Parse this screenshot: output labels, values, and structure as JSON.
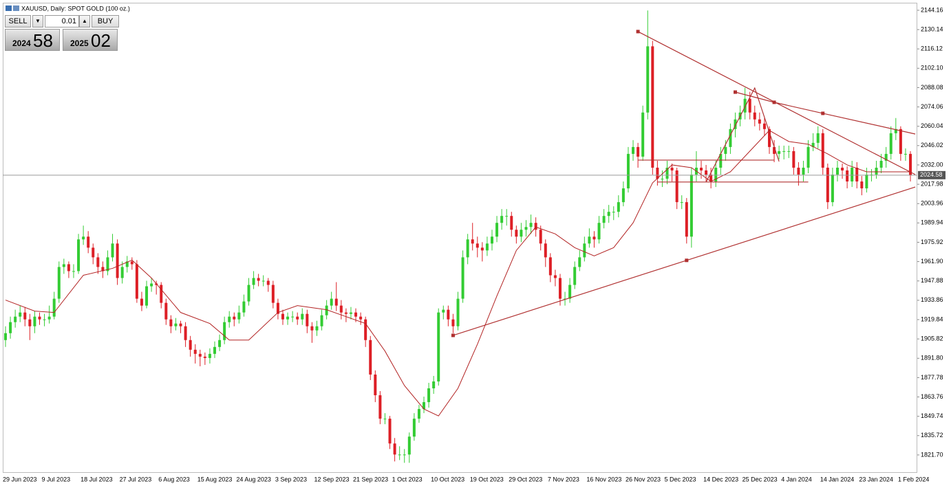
{
  "header": {
    "title": "XAUUSD, Daily:  SPOT GOLD (100 oz.)"
  },
  "trade_panel": {
    "sell": "SELL",
    "lots": "0.01",
    "buy": "BUY",
    "bid_big": "2024",
    "bid_small": "58",
    "ask_big": "2025",
    "ask_small": "02"
  },
  "chart_data": {
    "type": "candlestick",
    "categories": [
      "29 Jun 2023",
      null,
      null,
      null,
      null,
      null,
      null,
      null,
      "9 Jul 2023",
      null,
      null,
      null,
      null,
      null,
      null,
      null,
      "18 Jul 2023",
      null,
      null,
      null,
      null,
      null,
      null,
      null,
      "27 Jul 2023",
      null,
      null,
      null,
      null,
      null,
      null,
      null,
      "6 Aug 2023",
      null,
      null,
      null,
      null,
      null,
      null,
      null,
      "15 Aug 2023",
      null,
      null,
      null,
      null,
      null,
      null,
      null,
      "24 Aug 2023",
      null,
      null,
      null,
      null,
      null,
      null,
      null,
      "3 Sep 2023",
      null,
      null,
      null,
      null,
      null,
      null,
      null,
      "12 Sep 2023",
      null,
      null,
      null,
      null,
      null,
      null,
      null,
      "21 Sep 2023",
      null,
      null,
      null,
      null,
      null,
      null,
      null,
      "1 Oct 2023",
      null,
      null,
      null,
      null,
      null,
      null,
      null,
      "10 Oct 2023",
      null,
      null,
      null,
      null,
      null,
      null,
      null,
      "19 Oct 2023",
      null,
      null,
      null,
      null,
      null,
      null,
      null,
      "29 Oct 2023",
      null,
      null,
      null,
      null,
      null,
      null,
      null,
      "7 Nov 2023",
      null,
      null,
      null,
      null,
      null,
      null,
      null,
      "16 Nov 2023",
      null,
      null,
      null,
      null,
      null,
      null,
      null,
      "26 Nov 2023",
      null,
      null,
      null,
      null,
      null,
      null,
      null,
      "5 Dec 2023",
      null,
      null,
      null,
      null,
      null,
      null,
      null,
      "14 Dec 2023",
      null,
      null,
      null,
      null,
      null,
      null,
      null,
      "25 Dec 2023",
      null,
      null,
      null,
      null,
      null,
      null,
      null,
      "4 Jan 2024",
      null,
      null,
      null,
      null,
      null,
      null,
      null,
      "14 Jan 2024",
      null,
      null,
      null,
      null,
      null,
      null,
      null,
      "23 Jan 2024",
      null,
      null,
      null,
      null,
      null,
      null,
      null,
      "1 Feb 2024",
      null,
      null
    ],
    "open": [
      1905,
      1910,
      1918,
      1922,
      1925,
      1920,
      1915,
      1922,
      1920,
      1920,
      1922,
      1935,
      1958,
      1960,
      1955,
      1955,
      1978,
      1980,
      1972,
      1965,
      1958,
      1955,
      1965,
      1975,
      1950,
      1958,
      1962,
      1960,
      1935,
      1930,
      1944,
      1946,
      1945,
      1932,
      1920,
      1915,
      1917,
      1915,
      1905,
      1898,
      1895,
      1893,
      1892,
      1895,
      1900,
      1905,
      1918,
      1922,
      1920,
      1925,
      1933,
      1945,
      1950,
      1948,
      1948,
      1945,
      1932,
      1924,
      1920,
      1922,
      1922,
      1920,
      1924,
      1915,
      1912,
      1915,
      1923,
      1930,
      1935,
      1930,
      1925,
      1924,
      1925,
      1922,
      1920,
      1905,
      1880,
      1865,
      1848,
      1848,
      1830,
      1822,
      1822,
      1822,
      1835,
      1848,
      1855,
      1860,
      1870,
      1875,
      1925,
      1927,
      1920,
      1915,
      1935,
      1965,
      1978,
      1975,
      1972,
      1970,
      1975,
      1980,
      1990,
      1995,
      1995,
      1985,
      1980,
      1985,
      1987,
      1990,
      1985,
      1975,
      1965,
      1952,
      1950,
      1935,
      1935,
      1945,
      1958,
      1965,
      1975,
      1980,
      1978,
      1990,
      1995,
      1998,
      1998,
      2005,
      2015,
      2040,
      2045,
      2038,
      2070,
      2118,
      2030,
      2022,
      2022,
      2030,
      2028,
      2005,
      2005,
      1980,
      2025,
      2030,
      2028,
      2025,
      2020,
      2030,
      2040,
      2045,
      2058,
      2065,
      2070,
      2080,
      2070,
      2065,
      2062,
      2058,
      2045,
      2040,
      2042,
      2042,
      2042,
      2030,
      2025,
      2030,
      2045,
      2048,
      2055,
      2030,
      2005,
      2025,
      2030,
      2028,
      2020,
      2030,
      2020,
      2015,
      2025,
      2025,
      2030,
      2035,
      2040,
      2055,
      2058,
      2040,
      2040
    ],
    "high": [
      1915,
      1922,
      1927,
      1930,
      1929,
      1924,
      1926,
      1925,
      1924,
      1930,
      1940,
      1962,
      1964,
      1962,
      1960,
      1982,
      1988,
      1984,
      1975,
      1968,
      1962,
      1970,
      1982,
      1978,
      1962,
      1966,
      1965,
      1963,
      1940,
      1948,
      1950,
      1948,
      1947,
      1935,
      1923,
      1921,
      1919,
      1918,
      1908,
      1902,
      1898,
      1896,
      1899,
      1904,
      1909,
      1922,
      1926,
      1925,
      1930,
      1938,
      1950,
      1955,
      1953,
      1952,
      1950,
      1948,
      1935,
      1927,
      1925,
      1926,
      1925,
      1928,
      1927,
      1918,
      1919,
      1927,
      1934,
      1940,
      1947,
      1934,
      1928,
      1929,
      1928,
      1925,
      1922,
      1908,
      1883,
      1868,
      1852,
      1850,
      1834,
      1828,
      1826,
      1838,
      1852,
      1858,
      1864,
      1874,
      1879,
      1928,
      1930,
      1930,
      1924,
      1940,
      1970,
      1982,
      1990,
      1980,
      1976,
      1980,
      1985,
      1995,
      2000,
      2000,
      1998,
      1988,
      1990,
      1992,
      1996,
      1994,
      1988,
      1978,
      1968,
      1956,
      1953,
      1940,
      1950,
      1962,
      1970,
      1980,
      1986,
      1984,
      1995,
      2000,
      2003,
      2002,
      2010,
      2020,
      2045,
      2050,
      2048,
      2075,
      2144,
      2122,
      2035,
      2028,
      2035,
      2033,
      2030,
      2010,
      2008,
      2030,
      2042,
      2035,
      2032,
      2030,
      2035,
      2045,
      2050,
      2062,
      2070,
      2075,
      2088,
      2085,
      2075,
      2070,
      2066,
      2060,
      2050,
      2046,
      2046,
      2046,
      2045,
      2034,
      2035,
      2050,
      2055,
      2060,
      2058,
      2033,
      2030,
      2035,
      2033,
      2031,
      2035,
      2034,
      2024,
      2030,
      2029,
      2035,
      2040,
      2045,
      2060,
      2066,
      2060,
      2044,
      2042
    ],
    "low": [
      1900,
      1906,
      1914,
      1918,
      1915,
      1905,
      1910,
      1916,
      1915,
      1917,
      1920,
      1932,
      1953,
      1950,
      1950,
      1953,
      1974,
      1968,
      1960,
      1953,
      1950,
      1952,
      1962,
      1945,
      1946,
      1954,
      1956,
      1932,
      1926,
      1928,
      1940,
      1938,
      1928,
      1916,
      1910,
      1912,
      1910,
      1900,
      1893,
      1888,
      1886,
      1887,
      1888,
      1892,
      1897,
      1902,
      1914,
      1915,
      1917,
      1922,
      1930,
      1942,
      1944,
      1944,
      1940,
      1928,
      1920,
      1916,
      1916,
      1918,
      1916,
      1916,
      1910,
      1903,
      1908,
      1912,
      1920,
      1927,
      1926,
      1920,
      1918,
      1920,
      1918,
      1916,
      1900,
      1876,
      1860,
      1844,
      1844,
      1826,
      1817,
      1818,
      1816,
      1816,
      1832,
      1845,
      1852,
      1856,
      1866,
      1872,
      1920,
      1915,
      1910,
      1912,
      1932,
      1960,
      1970,
      1965,
      1962,
      1966,
      1970,
      1976,
      1985,
      1988,
      1980,
      1975,
      1976,
      1980,
      1982,
      1980,
      1970,
      1958,
      1947,
      1944,
      1930,
      1930,
      1932,
      1942,
      1955,
      1962,
      1972,
      1972,
      1975,
      1986,
      1990,
      1992,
      1994,
      2002,
      2012,
      2035,
      2030,
      2035,
      2065,
      2025,
      2017,
      2016,
      2018,
      2020,
      2000,
      2000,
      1975,
      1972,
      2020,
      2022,
      2020,
      2015,
      2016,
      2025,
      2035,
      2040,
      2052,
      2060,
      2065,
      2065,
      2060,
      2057,
      2053,
      2040,
      2034,
      2036,
      2036,
      2037,
      2025,
      2017,
      2020,
      2026,
      2042,
      2044,
      2025,
      2000,
      2002,
      2020,
      2022,
      2015,
      2016,
      2015,
      2010,
      2012,
      2020,
      2022,
      2026,
      2030,
      2036,
      2050,
      2035,
      2035,
      2020
    ],
    "close": [
      1910,
      1918,
      1922,
      1925,
      1920,
      1915,
      1922,
      1920,
      1920,
      1922,
      1935,
      1958,
      1960,
      1955,
      1955,
      1978,
      1980,
      1972,
      1965,
      1958,
      1955,
      1965,
      1975,
      1950,
      1958,
      1962,
      1960,
      1935,
      1930,
      1944,
      1946,
      1945,
      1932,
      1920,
      1915,
      1917,
      1915,
      1905,
      1898,
      1895,
      1893,
      1892,
      1895,
      1900,
      1905,
      1918,
      1922,
      1920,
      1925,
      1933,
      1945,
      1950,
      1948,
      1948,
      1945,
      1932,
      1924,
      1920,
      1922,
      1922,
      1920,
      1924,
      1915,
      1912,
      1915,
      1923,
      1930,
      1935,
      1930,
      1925,
      1924,
      1925,
      1922,
      1920,
      1905,
      1880,
      1865,
      1848,
      1848,
      1830,
      1822,
      1822,
      1822,
      1835,
      1848,
      1855,
      1860,
      1870,
      1875,
      1925,
      1927,
      1920,
      1915,
      1935,
      1965,
      1978,
      1975,
      1972,
      1970,
      1975,
      1980,
      1990,
      1995,
      1995,
      1985,
      1980,
      1985,
      1987,
      1990,
      1985,
      1975,
      1965,
      1952,
      1950,
      1935,
      1935,
      1945,
      1958,
      1965,
      1975,
      1980,
      1978,
      1990,
      1995,
      1998,
      1998,
      2005,
      2015,
      2040,
      2045,
      2038,
      2070,
      2118,
      2030,
      2022,
      2022,
      2030,
      2028,
      2005,
      2005,
      1980,
      2025,
      2030,
      2028,
      2025,
      2020,
      2030,
      2040,
      2045,
      2058,
      2065,
      2070,
      2080,
      2070,
      2065,
      2062,
      2058,
      2045,
      2040,
      2042,
      2042,
      2042,
      2030,
      2025,
      2030,
      2045,
      2048,
      2055,
      2030,
      2005,
      2025,
      2030,
      2028,
      2020,
      2030,
      2020,
      2015,
      2025,
      2025,
      2030,
      2035,
      2040,
      2055,
      2058,
      2040,
      2040,
      2024.58
    ],
    "up_color": "#33cc33",
    "down_color": "#dd1f26",
    "ylim": [
      1808.7,
      2149.1
    ],
    "yticks": [
      2144.16,
      2130.14,
      2116.12,
      {
        "value": 2102.1,
        "label": "2102.10"
      },
      2088.08,
      2074.06,
      2060.04,
      2046.02,
      {
        "value": 2032,
        "label": "2032.00"
      },
      2017.98,
      2003.96,
      1989.94,
      1975.92,
      {
        "value": 1961.9,
        "label": "1961.90"
      },
      1947.88,
      1933.86,
      1919.84,
      1905.82,
      {
        "value": 1891.8,
        "label": "1891.80"
      },
      1877.78,
      1863.76,
      1849.74,
      1835.72,
      {
        "value": 1821.7,
        "label": "1821.70"
      }
    ],
    "price_line_color": "#9a9a9a",
    "moving_average": {
      "color": "#b22222",
      "x": [
        0,
        6,
        10,
        16,
        22,
        26,
        30,
        36,
        42,
        46,
        50,
        56,
        60,
        66,
        70,
        74,
        78,
        82,
        86,
        89,
        93,
        97,
        101,
        105,
        109,
        113,
        117,
        121,
        125,
        129,
        133,
        137,
        141,
        145,
        149,
        153,
        157,
        161,
        165,
        169,
        173,
        177,
        181,
        186
      ],
      "values": [
        1934,
        1926,
        1925,
        1952,
        1957,
        1963,
        1950,
        1925,
        1917,
        1905,
        1905,
        1925,
        1930,
        1927,
        1922,
        1917,
        1897,
        1872,
        1855,
        1850,
        1870,
        1902,
        1937,
        1970,
        1987,
        1982,
        1972,
        1966,
        1972,
        1990,
        2019,
        2032,
        2030,
        2020,
        2027,
        2042,
        2057,
        2049,
        2047,
        2040,
        2032,
        2027,
        2027,
        2027
      ]
    },
    "trendlines": [
      {
        "color": "#b03030",
        "handles": true,
        "x": [
          130,
          187
        ],
        "y": [
          2128.7,
          2025
        ]
      },
      {
        "color": "#b03030",
        "handles": true,
        "x": [
          150,
          158,
          168,
          187
        ],
        "y": [
          2084.8,
          2077.4,
          2069.4,
          2054.4
        ]
      },
      {
        "color": "#b03030",
        "handles": true,
        "x": [
          92,
          140,
          187
        ],
        "y": [
          1908.4,
          1962.8,
          2016
        ]
      },
      {
        "color": "#b03030",
        "handles": false,
        "x": [
          130,
          158
        ],
        "y": [
          2035.5,
          2035.5
        ]
      },
      {
        "color": "#b03030",
        "handles": false,
        "x": [
          134,
          165
        ],
        "y": [
          2019.6,
          2019.6
        ]
      },
      {
        "color": "#b03030",
        "handles": false,
        "x": [
          144,
          154,
          159
        ],
        "y": [
          2019.6,
          2087.8,
          2034.5
        ]
      }
    ]
  }
}
